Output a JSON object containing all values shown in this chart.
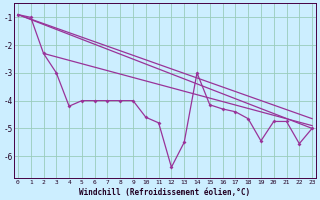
{
  "xlabel": "Windchill (Refroidissement éolien,°C)",
  "bg_color": "#cceeff",
  "grid_color": "#99ccbb",
  "line_color": "#993399",
  "xmin": 0,
  "xmax": 23,
  "ymin": -6.8,
  "ymax": -0.5,
  "yticks": [
    -1,
    -2,
    -3,
    -4,
    -5,
    -6
  ],
  "x": [
    0,
    1,
    2,
    3,
    4,
    5,
    6,
    7,
    8,
    9,
    10,
    11,
    12,
    13,
    14,
    15,
    16,
    17,
    18,
    19,
    20,
    21,
    22,
    23
  ],
  "curve1": [
    -0.9,
    -1.0,
    -2.3,
    -3.0,
    -4.2,
    -4.0,
    -4.0,
    -4.0,
    -4.0,
    -4.0,
    -4.6,
    -4.8,
    -6.4,
    -5.5,
    -3.0,
    -4.15,
    -4.3,
    -4.4,
    -4.65,
    -5.45,
    -4.75,
    -4.75,
    -5.55,
    -5.0
  ],
  "line1_x": [
    0,
    23
  ],
  "line1_y": [
    -0.9,
    -5.0
  ],
  "line2_x": [
    0,
    23
  ],
  "line2_y": [
    -0.9,
    -4.65
  ],
  "line3_x": [
    2,
    23
  ],
  "line3_y": [
    -2.3,
    -4.9
  ]
}
